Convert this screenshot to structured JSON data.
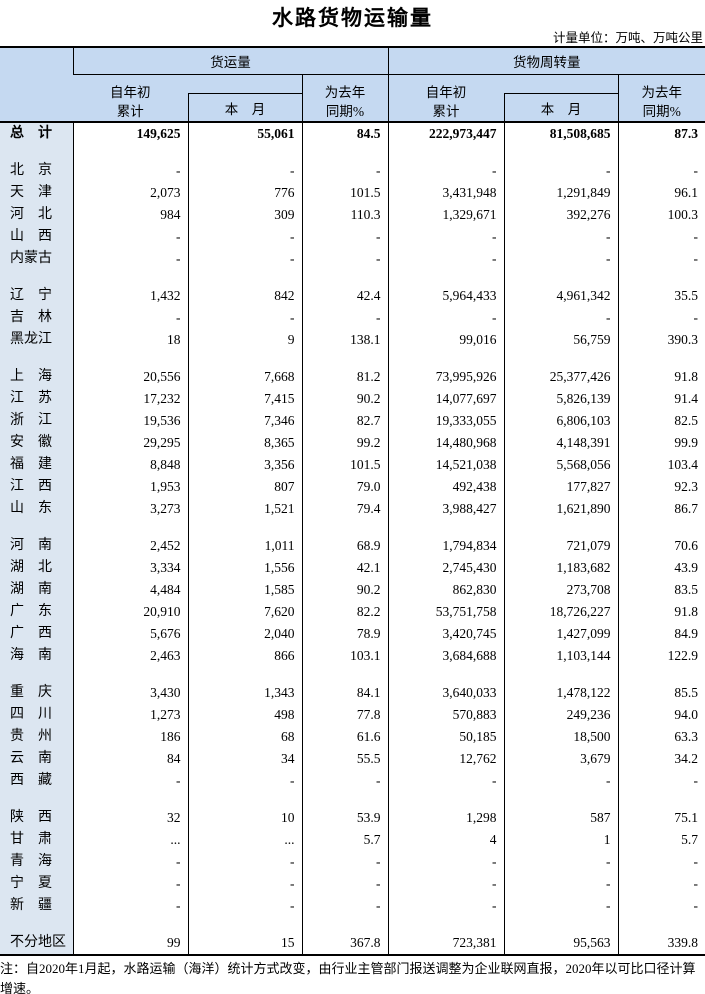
{
  "title": "水路货物运输量",
  "unit_note": "计量单位：万吨、万吨公里",
  "colors": {
    "header_bg": "#c5d9f1",
    "region_col_bg": "#dce6f1",
    "border": "#000000"
  },
  "table": {
    "group_headers": {
      "freight_volume": "货运量",
      "freight_turnover": "货物周转量"
    },
    "sub_headers": {
      "cumulative_line1": "自年初",
      "cumulative_line2": "累计",
      "month": "本　月",
      "yoy_line1": "为去年",
      "yoy_line2": "同期%"
    },
    "rows": [
      {
        "region": "总　计",
        "bold": true,
        "values": [
          "149,625",
          "55,061",
          "84.5",
          "222,973,447",
          "81,508,685",
          "87.3"
        ]
      },
      {
        "spacer": true
      },
      {
        "region": "北　京",
        "values": [
          "-",
          "-",
          "-",
          "-",
          "-",
          "-"
        ]
      },
      {
        "region": "天　津",
        "values": [
          "2,073",
          "776",
          "101.5",
          "3,431,948",
          "1,291,849",
          "96.1"
        ]
      },
      {
        "region": "河　北",
        "values": [
          "984",
          "309",
          "110.3",
          "1,329,671",
          "392,276",
          "100.3"
        ]
      },
      {
        "region": "山　西",
        "values": [
          "-",
          "-",
          "-",
          "-",
          "-",
          "-"
        ]
      },
      {
        "region": "内蒙古",
        "values": [
          "-",
          "-",
          "-",
          "-",
          "-",
          "-"
        ]
      },
      {
        "spacer": true
      },
      {
        "region": "辽　宁",
        "values": [
          "1,432",
          "842",
          "42.4",
          "5,964,433",
          "4,961,342",
          "35.5"
        ]
      },
      {
        "region": "吉　林",
        "values": [
          "-",
          "-",
          "-",
          "-",
          "-",
          "-"
        ]
      },
      {
        "region": "黑龙江",
        "values": [
          "18",
          "9",
          "138.1",
          "99,016",
          "56,759",
          "390.3"
        ]
      },
      {
        "spacer": true
      },
      {
        "region": "上　海",
        "values": [
          "20,556",
          "7,668",
          "81.2",
          "73,995,926",
          "25,377,426",
          "91.8"
        ]
      },
      {
        "region": "江　苏",
        "values": [
          "17,232",
          "7,415",
          "90.2",
          "14,077,697",
          "5,826,139",
          "91.4"
        ]
      },
      {
        "region": "浙　江",
        "values": [
          "19,536",
          "7,346",
          "82.7",
          "19,333,055",
          "6,806,103",
          "82.5"
        ]
      },
      {
        "region": "安　徽",
        "values": [
          "29,295",
          "8,365",
          "99.2",
          "14,480,968",
          "4,148,391",
          "99.9"
        ]
      },
      {
        "region": "福　建",
        "values": [
          "8,848",
          "3,356",
          "101.5",
          "14,521,038",
          "5,568,056",
          "103.4"
        ]
      },
      {
        "region": "江　西",
        "values": [
          "1,953",
          "807",
          "79.0",
          "492,438",
          "177,827",
          "92.3"
        ]
      },
      {
        "region": "山　东",
        "values": [
          "3,273",
          "1,521",
          "79.4",
          "3,988,427",
          "1,621,890",
          "86.7"
        ]
      },
      {
        "spacer": true
      },
      {
        "region": "河　南",
        "values": [
          "2,452",
          "1,011",
          "68.9",
          "1,794,834",
          "721,079",
          "70.6"
        ]
      },
      {
        "region": "湖　北",
        "values": [
          "3,334",
          "1,556",
          "42.1",
          "2,745,430",
          "1,183,682",
          "43.9"
        ]
      },
      {
        "region": "湖　南",
        "values": [
          "4,484",
          "1,585",
          "90.2",
          "862,830",
          "273,708",
          "83.5"
        ]
      },
      {
        "region": "广　东",
        "values": [
          "20,910",
          "7,620",
          "82.2",
          "53,751,758",
          "18,726,227",
          "91.8"
        ]
      },
      {
        "region": "广　西",
        "values": [
          "5,676",
          "2,040",
          "78.9",
          "3,420,745",
          "1,427,099",
          "84.9"
        ]
      },
      {
        "region": "海　南",
        "values": [
          "2,463",
          "866",
          "103.1",
          "3,684,688",
          "1,103,144",
          "122.9"
        ]
      },
      {
        "spacer": true
      },
      {
        "region": "重　庆",
        "values": [
          "3,430",
          "1,343",
          "84.1",
          "3,640,033",
          "1,478,122",
          "85.5"
        ]
      },
      {
        "region": "四　川",
        "values": [
          "1,273",
          "498",
          "77.8",
          "570,883",
          "249,236",
          "94.0"
        ]
      },
      {
        "region": "贵　州",
        "values": [
          "186",
          "68",
          "61.6",
          "50,185",
          "18,500",
          "63.3"
        ]
      },
      {
        "region": "云　南",
        "values": [
          "84",
          "34",
          "55.5",
          "12,762",
          "3,679",
          "34.2"
        ]
      },
      {
        "region": "西　藏",
        "values": [
          "-",
          "-",
          "-",
          "-",
          "-",
          "-"
        ]
      },
      {
        "spacer": true
      },
      {
        "region": "陕　西",
        "values": [
          "32",
          "10",
          "53.9",
          "1,298",
          "587",
          "75.1"
        ]
      },
      {
        "region": "甘　肃",
        "values": [
          "...",
          "...",
          "5.7",
          "4",
          "1",
          "5.7"
        ]
      },
      {
        "region": "青　海",
        "values": [
          "-",
          "-",
          "-",
          "-",
          "-",
          "-"
        ]
      },
      {
        "region": "宁　夏",
        "values": [
          "-",
          "-",
          "-",
          "-",
          "-",
          "-"
        ]
      },
      {
        "region": "新　疆",
        "values": [
          "-",
          "-",
          "-",
          "-",
          "-",
          "-"
        ]
      },
      {
        "spacer": true
      },
      {
        "region": "不分地区",
        "values": [
          "99",
          "15",
          "367.8",
          "723,381",
          "95,563",
          "339.8"
        ]
      }
    ]
  },
  "footnote": "注：自2020年1月起，水路运输（海洋）统计方式改变，由行业主管部门报送调整为企业联网直报，2020年以可比口径计算增速。"
}
